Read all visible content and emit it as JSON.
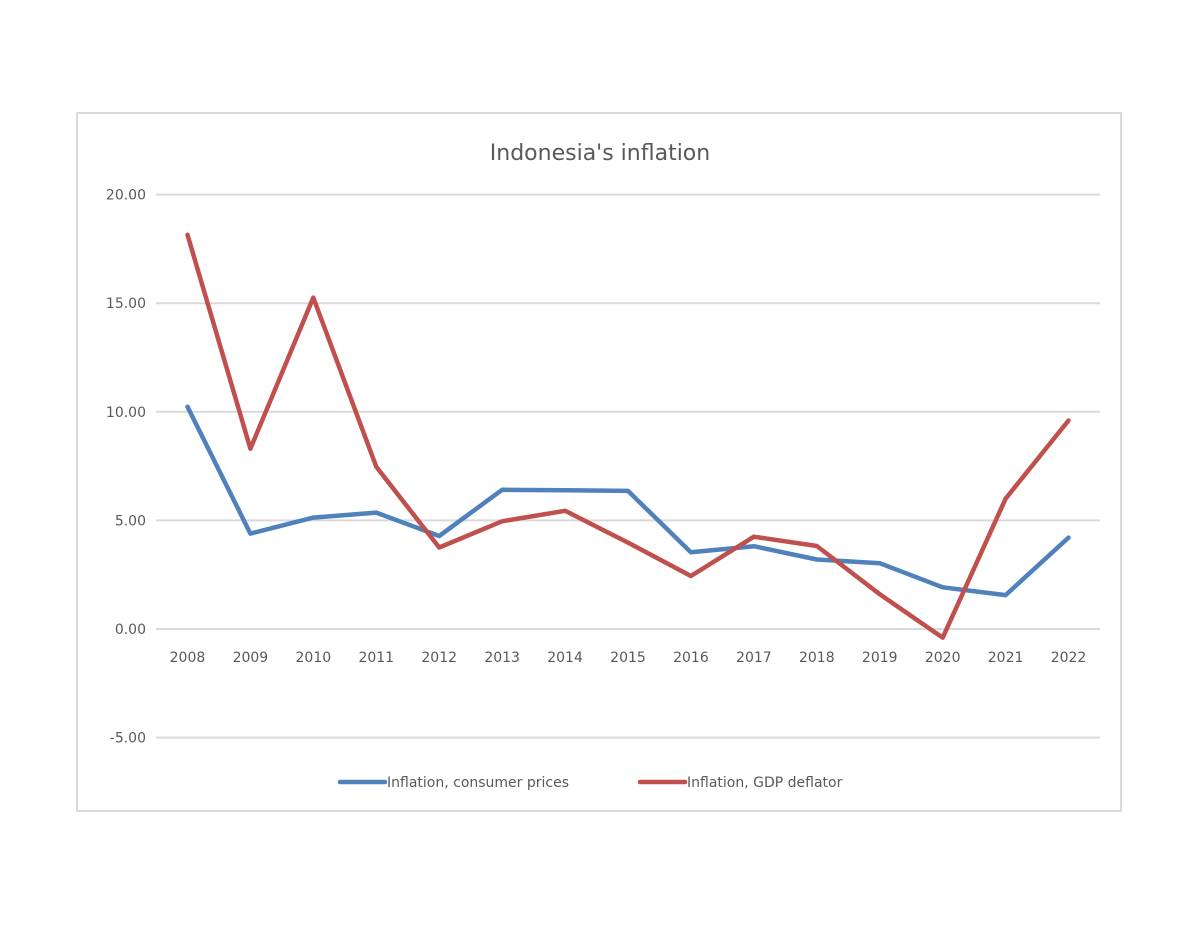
{
  "chart_data": {
    "type": "line",
    "title": "Indonesia's inflation",
    "xlabel": "",
    "ylabel": "",
    "ylim": [
      -5,
      20
    ],
    "yticks": [
      "-5.00",
      "0.00",
      "5.00",
      "10.00",
      "15.00",
      "20.00"
    ],
    "grid": true,
    "legend_position": "bottom",
    "categories": [
      "2008",
      "2009",
      "2010",
      "2011",
      "2012",
      "2013",
      "2014",
      "2015",
      "2016",
      "2017",
      "2018",
      "2019",
      "2020",
      "2021",
      "2022"
    ],
    "series": [
      {
        "name": "Inflation, consumer prices",
        "color": "#4f81bd",
        "values": [
          10.23,
          4.39,
          5.13,
          5.36,
          4.28,
          6.41,
          6.39,
          6.36,
          3.53,
          3.81,
          3.2,
          3.03,
          1.92,
          1.56,
          4.21
        ]
      },
      {
        "name": "Inflation, GDP deflator",
        "color": "#c0504d",
        "values": [
          18.15,
          8.3,
          15.26,
          7.47,
          3.75,
          4.96,
          5.44,
          3.98,
          2.44,
          4.25,
          3.82,
          1.6,
          -0.4,
          6.0,
          9.6
        ]
      }
    ]
  }
}
